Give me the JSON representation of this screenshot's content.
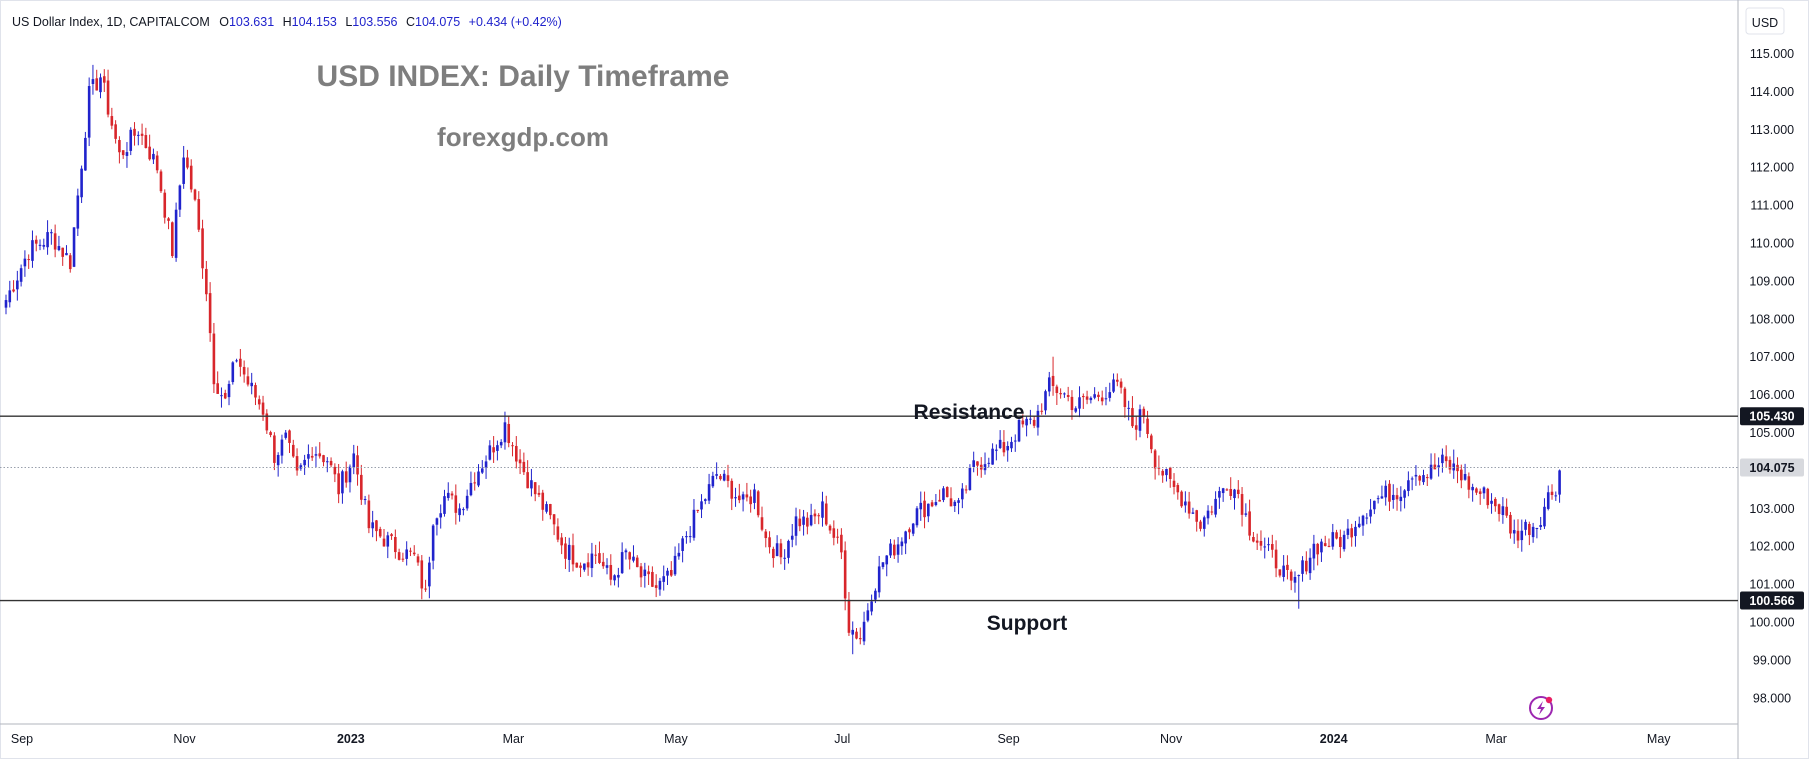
{
  "header": {
    "symbol": "US Dollar Index, 1D, CAPITALCOM",
    "o_label": "O",
    "o_value": "103.631",
    "h_label": "H",
    "h_value": "104.153",
    "l_label": "L",
    "l_value": "103.556",
    "c_label": "C",
    "c_value": "104.075",
    "change": "+0.434 (+0.42%)",
    "currency_badge": "USD"
  },
  "watermark": {
    "title": "USD INDEX: Daily Timeframe",
    "site": "forexgdp.com"
  },
  "annotations": {
    "resistance_label": "Resistance",
    "support_label": "Support",
    "resistance_price": "105.430",
    "support_price": "100.566",
    "last_price": "104.075"
  },
  "colors": {
    "up": "#2023cc",
    "down": "#d8262b",
    "grid": "#eeeeee",
    "axis_text": "#131722",
    "watermark": "#7e7e7e",
    "level_line": "#333333",
    "last_price_line": "#9aa0ac",
    "badge_bg": "#131722",
    "badge_fg": "#ffffff",
    "light_badge_bg": "#d7d9de",
    "purple": "#9c27b0"
  },
  "icons": {
    "bottom_right": "lightning-icon"
  },
  "chart_data": {
    "type": "candlestick",
    "title": "",
    "xlabel": "",
    "ylabel": "",
    "ylim": [
      97.6,
      115.6
    ],
    "y_ticks": [
      "115.000",
      "114.000",
      "113.000",
      "112.000",
      "111.000",
      "110.000",
      "109.000",
      "108.000",
      "107.000",
      "106.000",
      "105.000",
      "104.000",
      "103.000",
      "102.000",
      "101.000",
      "100.000",
      "99.000",
      "98.000"
    ],
    "x_ticks": [
      "Sep",
      "Nov",
      "2023",
      "Mar",
      "May",
      "Jul",
      "Sep",
      "Nov",
      "2024",
      "Mar",
      "May"
    ],
    "x_tick_bars": [
      0,
      43,
      87,
      130,
      173,
      217,
      261,
      304,
      347,
      390,
      433
    ],
    "total_bars": 465,
    "grid": false,
    "horizontal_levels": [
      {
        "name": "Resistance",
        "value": 105.43
      },
      {
        "name": "Support",
        "value": 100.566
      }
    ],
    "last_close": 104.075,
    "path_anchors": [
      [
        0,
        108.5
      ],
      [
        6,
        109.8
      ],
      [
        12,
        110.2
      ],
      [
        17,
        109.5
      ],
      [
        22,
        113.9
      ],
      [
        25,
        114.4
      ],
      [
        30,
        112.3
      ],
      [
        35,
        113.0
      ],
      [
        40,
        112.0
      ],
      [
        44,
        109.8
      ],
      [
        47,
        112.4
      ],
      [
        50,
        111.0
      ],
      [
        53,
        108.8
      ],
      [
        55,
        106.5
      ],
      [
        58,
        105.8
      ],
      [
        61,
        107.0
      ],
      [
        64,
        106.3
      ],
      [
        68,
        105.6
      ],
      [
        71,
        104.4
      ],
      [
        74,
        104.8
      ],
      [
        77,
        103.8
      ],
      [
        81,
        104.6
      ],
      [
        85,
        104.3
      ],
      [
        88,
        103.5
      ],
      [
        92,
        104.4
      ],
      [
        96,
        102.5
      ],
      [
        100,
        102.2
      ],
      [
        104,
        101.9
      ],
      [
        108,
        101.7
      ],
      [
        111,
        100.7
      ],
      [
        113,
        102.8
      ],
      [
        116,
        103.3
      ],
      [
        120,
        103.0
      ],
      [
        124,
        103.9
      ],
      [
        128,
        104.5
      ],
      [
        132,
        105.2
      ],
      [
        136,
        104.2
      ],
      [
        140,
        103.4
      ],
      [
        144,
        102.7
      ],
      [
        148,
        101.9
      ],
      [
        152,
        101.6
      ],
      [
        156,
        101.8
      ],
      [
        160,
        101.1
      ],
      [
        164,
        101.8
      ],
      [
        168,
        101.2
      ],
      [
        172,
        100.9
      ],
      [
        176,
        101.2
      ],
      [
        180,
        102.3
      ],
      [
        184,
        103.1
      ],
      [
        188,
        103.9
      ],
      [
        192,
        103.5
      ],
      [
        195,
        103.1
      ],
      [
        198,
        103.4
      ],
      [
        201,
        102.2
      ],
      [
        205,
        101.7
      ],
      [
        209,
        102.7
      ],
      [
        213,
        102.6
      ],
      [
        216,
        103.0
      ],
      [
        218,
        102.5
      ],
      [
        221,
        101.8
      ],
      [
        223,
        99.9
      ],
      [
        226,
        99.6
      ],
      [
        229,
        100.8
      ],
      [
        232,
        101.6
      ],
      [
        236,
        102.1
      ],
      [
        240,
        102.8
      ],
      [
        244,
        103.1
      ],
      [
        248,
        103.4
      ],
      [
        252,
        103.0
      ],
      [
        256,
        104.1
      ],
      [
        260,
        104.4
      ],
      [
        264,
        104.6
      ],
      [
        268,
        105.1
      ],
      [
        272,
        105.3
      ],
      [
        276,
        106.2
      ],
      [
        279,
        106.1
      ],
      [
        283,
        105.7
      ],
      [
        287,
        105.9
      ],
      [
        291,
        106.1
      ],
      [
        294,
        106.2
      ],
      [
        298,
        105.2
      ],
      [
        301,
        105.5
      ],
      [
        304,
        104.3
      ],
      [
        308,
        103.6
      ],
      [
        312,
        103.2
      ],
      [
        316,
        102.6
      ],
      [
        320,
        103.2
      ],
      [
        323,
        103.7
      ],
      [
        326,
        103.4
      ],
      [
        329,
        102.5
      ],
      [
        333,
        101.9
      ],
      [
        337,
        101.5
      ],
      [
        340,
        100.9
      ],
      [
        342,
        101.2
      ],
      [
        346,
        102.0
      ],
      [
        350,
        102.1
      ],
      [
        354,
        102.2
      ],
      [
        358,
        102.8
      ],
      [
        362,
        103.2
      ],
      [
        366,
        103.4
      ],
      [
        369,
        103.5
      ],
      [
        372,
        104.0
      ],
      [
        376,
        103.9
      ],
      [
        380,
        104.2
      ],
      [
        384,
        104.0
      ],
      [
        388,
        103.5
      ],
      [
        392,
        103.3
      ],
      [
        396,
        102.9
      ],
      [
        399,
        102.3
      ],
      [
        402,
        102.5
      ],
      [
        405,
        102.6
      ],
      [
        408,
        103.3
      ],
      [
        410,
        103.6
      ],
      [
        411,
        104.0
      ]
    ],
    "swing_extremes": [
      {
        "bar": 23,
        "high": 114.7
      },
      {
        "bar": 110,
        "low": 100.6
      },
      {
        "bar": 133,
        "high": 105.45
      },
      {
        "bar": 224,
        "low": 99.15
      },
      {
        "bar": 277,
        "high": 107.0
      },
      {
        "bar": 342,
        "low": 100.35
      },
      {
        "bar": 383,
        "high": 104.55
      },
      {
        "bar": 400,
        "low": 101.95
      }
    ]
  }
}
